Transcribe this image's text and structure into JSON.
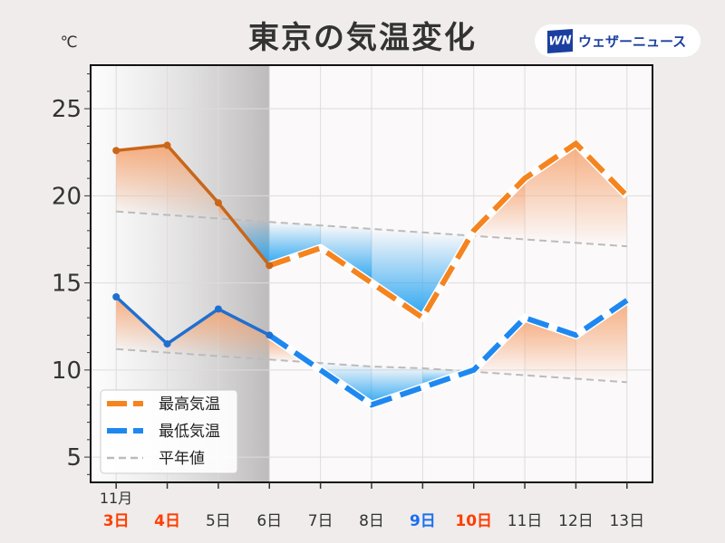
{
  "title": "東京の気温変化",
  "logo": {
    "mark": "WN",
    "text": "ウェザーニュース"
  },
  "chart_data": {
    "type": "line",
    "title": "東京の気温変化",
    "ylabel": "℃",
    "xlabel": "",
    "month_label": "11月",
    "x": [
      3,
      4,
      5,
      6,
      7,
      8,
      9,
      10,
      11,
      12,
      13
    ],
    "tick_labels": [
      "3日",
      "4日",
      "5日",
      "6日",
      "7日",
      "8日",
      "9日",
      "10日",
      "11日",
      "12日",
      "13日"
    ],
    "tick_colors": [
      "#ff3d00",
      "#ff3d00",
      "#333333",
      "#333333",
      "#333333",
      "#333333",
      "#1a6ff0",
      "#ff3d00",
      "#333333",
      "#333333",
      "#333333"
    ],
    "xlim": [
      2.5,
      13.5
    ],
    "ylim": [
      3.55,
      27.5
    ],
    "yticks": [
      5,
      10,
      15,
      20,
      25
    ],
    "grid": true,
    "observed_until": 6,
    "series": [
      {
        "name": "最高気温",
        "color": "#f5841f",
        "past_color": "#c8661a",
        "values": [
          22.6,
          22.9,
          19.6,
          16.0,
          17.0,
          15.0,
          13.0,
          18.0,
          21.0,
          23.0,
          20.0
        ]
      },
      {
        "name": "最低気温",
        "color": "#1e88f0",
        "past_color": "#1f6fd0",
        "values": [
          14.2,
          11.5,
          13.5,
          12.0,
          10.0,
          8.0,
          9.0,
          10.0,
          13.0,
          12.0,
          14.0
        ]
      },
      {
        "name": "平年値",
        "color": "#bbbbbb",
        "normal_high": [
          19.1,
          18.9,
          18.7,
          18.5,
          18.3,
          18.1,
          17.9,
          17.7,
          17.5,
          17.3,
          17.1
        ],
        "normal_low": [
          11.2,
          11.0,
          10.8,
          10.6,
          10.4,
          10.2,
          10.1,
          9.9,
          9.7,
          9.5,
          9.3
        ]
      }
    ],
    "legend": {
      "placement": "lower-left",
      "entries": [
        "最高気温",
        "最低気温",
        "平年値"
      ]
    },
    "fill_colors": {
      "above": "#f5a06a",
      "below": "#1ea0f0"
    }
  }
}
